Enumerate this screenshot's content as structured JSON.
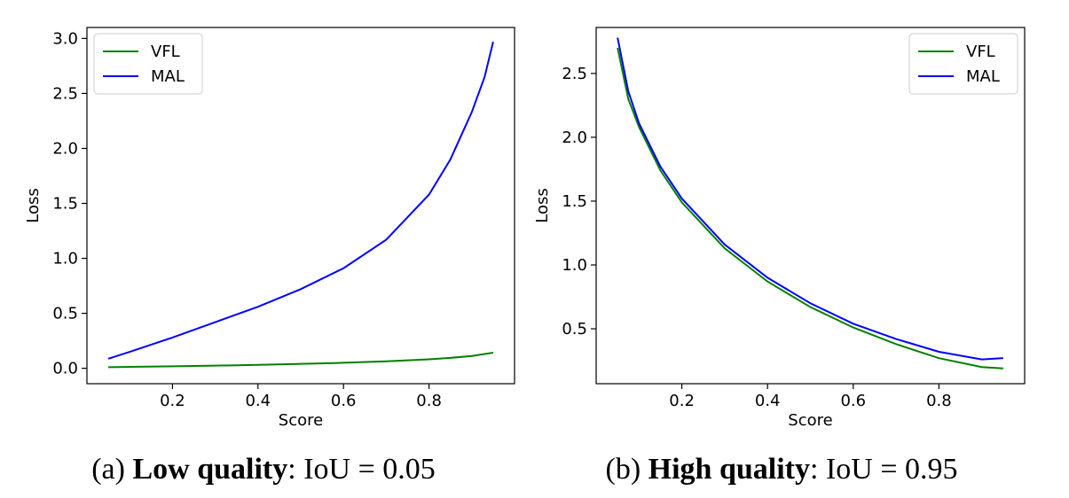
{
  "chart_data": [
    {
      "type": "line",
      "caption": {
        "prefix": "(a) ",
        "bold": "Low quality",
        "suffix": ": IoU = 0.05"
      },
      "xlabel": "Score",
      "ylabel": "Loss",
      "xlim": [
        0.0,
        1.0
      ],
      "ylim": [
        -0.14,
        3.1
      ],
      "xticks": [
        0.2,
        0.4,
        0.6,
        0.8
      ],
      "xtick_labels": [
        "0.2",
        "0.4",
        "0.6",
        "0.8"
      ],
      "yticks": [
        0.0,
        0.5,
        1.0,
        1.5,
        2.0,
        2.5,
        3.0
      ],
      "ytick_labels": [
        "0.0",
        "0.5",
        "1.0",
        "1.5",
        "2.0",
        "2.5",
        "3.0"
      ],
      "legend_position": "top-left",
      "series": [
        {
          "name": "VFL",
          "color": "#008000",
          "x": [
            0.05,
            0.1,
            0.2,
            0.3,
            0.4,
            0.5,
            0.6,
            0.7,
            0.8,
            0.85,
            0.9,
            0.95
          ],
          "y": [
            0.01,
            0.013,
            0.018,
            0.024,
            0.031,
            0.04,
            0.05,
            0.064,
            0.082,
            0.095,
            0.112,
            0.142
          ]
        },
        {
          "name": "MAL",
          "color": "#0000ff",
          "x": [
            0.05,
            0.1,
            0.2,
            0.3,
            0.4,
            0.5,
            0.6,
            0.7,
            0.8,
            0.85,
            0.9,
            0.93,
            0.95
          ],
          "y": [
            0.087,
            0.15,
            0.28,
            0.42,
            0.56,
            0.72,
            0.91,
            1.17,
            1.58,
            1.9,
            2.33,
            2.65,
            2.97
          ]
        }
      ]
    },
    {
      "type": "line",
      "caption": {
        "prefix": "(b) ",
        "bold": "High quality",
        "suffix": ": IoU = 0.95"
      },
      "xlabel": "Score",
      "ylabel": "Loss",
      "xlim": [
        0.0,
        1.0
      ],
      "ylim": [
        0.07,
        2.86
      ],
      "xticks": [
        0.2,
        0.4,
        0.6,
        0.8
      ],
      "xtick_labels": [
        "0.2",
        "0.4",
        "0.6",
        "0.8"
      ],
      "yticks": [
        0.5,
        1.0,
        1.5,
        2.0,
        2.5
      ],
      "ytick_labels": [
        "0.5",
        "1.0",
        "1.5",
        "2.0",
        "2.5"
      ],
      "legend_position": "top-right",
      "series": [
        {
          "name": "VFL",
          "color": "#008000",
          "x": [
            0.05,
            0.075,
            0.1,
            0.15,
            0.2,
            0.3,
            0.4,
            0.5,
            0.6,
            0.7,
            0.8,
            0.9,
            0.95
          ],
          "y": [
            2.7,
            2.3,
            2.08,
            1.74,
            1.49,
            1.13,
            0.87,
            0.67,
            0.51,
            0.38,
            0.27,
            0.2,
            0.19
          ]
        },
        {
          "name": "MAL",
          "color": "#0000ff",
          "x": [
            0.05,
            0.075,
            0.1,
            0.15,
            0.2,
            0.3,
            0.4,
            0.5,
            0.6,
            0.7,
            0.8,
            0.9,
            0.95
          ],
          "y": [
            2.78,
            2.36,
            2.11,
            1.77,
            1.52,
            1.16,
            0.9,
            0.7,
            0.54,
            0.42,
            0.32,
            0.26,
            0.27
          ]
        }
      ]
    }
  ]
}
